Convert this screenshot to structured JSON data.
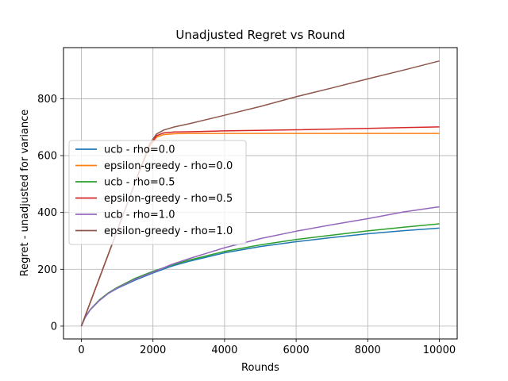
{
  "chart_data": {
    "type": "line",
    "title": "Unadjusted Regret vs Round",
    "xlabel": "Rounds",
    "ylabel": "Regret - unadjusted for variance",
    "xlim": [
      -500,
      10500
    ],
    "ylim": [
      -45,
      980
    ],
    "xticks": [
      0,
      2000,
      4000,
      6000,
      8000,
      10000
    ],
    "yticks": [
      0,
      200,
      400,
      600,
      800
    ],
    "grid": true,
    "legend_position": "center-left",
    "series": [
      {
        "name": "ucb - rho=0.0",
        "color": "#1f77b4",
        "x": [
          0,
          100,
          250,
          500,
          750,
          1000,
          1500,
          2000,
          2500,
          3000,
          4000,
          5000,
          6000,
          7000,
          8000,
          9000,
          10000
        ],
        "y": [
          0,
          30,
          58,
          90,
          115,
          133,
          162,
          187,
          210,
          228,
          258,
          280,
          297,
          312,
          325,
          336,
          345
        ]
      },
      {
        "name": "epsilon-greedy - rho=0.0",
        "color": "#ff7f0e",
        "x": [
          0,
          500,
          1000,
          1500,
          1900,
          2100,
          2300,
          2600,
          3000,
          4000,
          6000,
          8000,
          10000
        ],
        "y": [
          0,
          168,
          336,
          505,
          630,
          665,
          674,
          677,
          678,
          678,
          678,
          678,
          678
        ]
      },
      {
        "name": "ucb - rho=0.5",
        "color": "#2ca02c",
        "x": [
          0,
          100,
          250,
          500,
          750,
          1000,
          1500,
          2000,
          2500,
          3000,
          4000,
          5000,
          6000,
          7000,
          8000,
          9000,
          10000
        ],
        "y": [
          0,
          30,
          59,
          92,
          117,
          136,
          168,
          193,
          214,
          232,
          263,
          286,
          305,
          320,
          335,
          348,
          360
        ]
      },
      {
        "name": "epsilon-greedy - rho=0.5",
        "color": "#d62728",
        "x": [
          0,
          500,
          1000,
          1500,
          1900,
          2100,
          2300,
          2600,
          3000,
          4000,
          6000,
          8000,
          10000
        ],
        "y": [
          0,
          168,
          336,
          505,
          635,
          670,
          680,
          683,
          684,
          687,
          691,
          696,
          701
        ]
      },
      {
        "name": "ucb - rho=1.0",
        "color": "#9467bd",
        "x": [
          0,
          100,
          250,
          500,
          750,
          1000,
          1500,
          2000,
          2500,
          3000,
          4000,
          5000,
          6000,
          7000,
          8000,
          9000,
          10000
        ],
        "y": [
          0,
          30,
          58,
          90,
          115,
          134,
          165,
          190,
          216,
          237,
          276,
          308,
          334,
          357,
          378,
          402,
          420
        ]
      },
      {
        "name": "epsilon-greedy - rho=1.0",
        "color": "#8c564b",
        "x": [
          0,
          500,
          1000,
          1500,
          1900,
          2100,
          2300,
          2600,
          3000,
          4000,
          5000,
          6000,
          7000,
          8000,
          9000,
          10000
        ],
        "y": [
          0,
          168,
          336,
          505,
          640,
          676,
          690,
          701,
          712,
          742,
          773,
          807,
          838,
          870,
          901,
          933
        ]
      }
    ]
  }
}
